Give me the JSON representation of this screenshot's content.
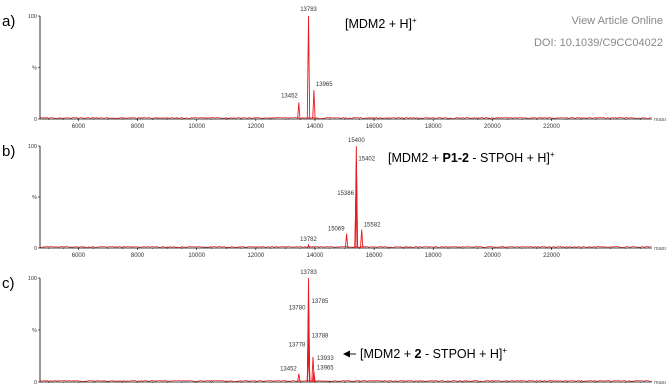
{
  "watermark": {
    "line1": "View Article Online",
    "line2": "DOI: 10.1039/C9CC04022"
  },
  "chart_data": {
    "type": "line",
    "x_unit": "mass",
    "xlim": [
      4700,
      25400
    ],
    "ylim": [
      0,
      100
    ],
    "xticks": [
      "6000",
      "8000",
      "10000",
      "12000",
      "14000",
      "16000",
      "18000",
      "20000",
      "22000"
    ],
    "yticks": [
      "0",
      "%",
      "100"
    ],
    "colors": {
      "trace": "#e8191c",
      "axis": "#000000"
    },
    "panels": [
      {
        "label": "a)",
        "ion": "[MDM2 + H]",
        "ion_sup": "+",
        "peaks": [
          {
            "x": 13452,
            "y": 16,
            "label": "13452"
          },
          {
            "x": 13783,
            "y": 100,
            "label": "13783"
          },
          {
            "x": 13965,
            "y": 28,
            "label": "13965"
          }
        ]
      },
      {
        "label": "b)",
        "ion_parts": [
          "[MDM2 + ",
          "P1-2",
          " - STPOH + H]"
        ],
        "ion_sup": "+",
        "peaks": [
          {
            "x": 13782,
            "y": 3,
            "label": "13782"
          },
          {
            "x": 15069,
            "y": 14,
            "label": "15069"
          },
          {
            "x": 15386,
            "y": 50,
            "label": "15386"
          },
          {
            "x": 15400,
            "y": 100,
            "label": "15400"
          },
          {
            "x": 15402,
            "y": 84,
            "label": "15402"
          },
          {
            "x": 15582,
            "y": 18,
            "label": "15582"
          }
        ]
      },
      {
        "label": "c)",
        "ion_parts": [
          "[MDM2 + ",
          "2",
          " - STPOH + H]"
        ],
        "ion_sup": "+",
        "peaks": [
          {
            "x": 13452,
            "y": 8,
            "label": "13452"
          },
          {
            "x": 13778,
            "y": 32,
            "label": "13778"
          },
          {
            "x": 13780,
            "y": 68,
            "label": "13780"
          },
          {
            "x": 13783,
            "y": 100,
            "label": "13783"
          },
          {
            "x": 13785,
            "y": 74,
            "label": "13785"
          },
          {
            "x": 13788,
            "y": 41,
            "label": "13788"
          },
          {
            "x": 13933,
            "y": 24,
            "label": "13933"
          },
          {
            "x": 13965,
            "y": 10,
            "label": "13965"
          }
        ]
      }
    ]
  }
}
